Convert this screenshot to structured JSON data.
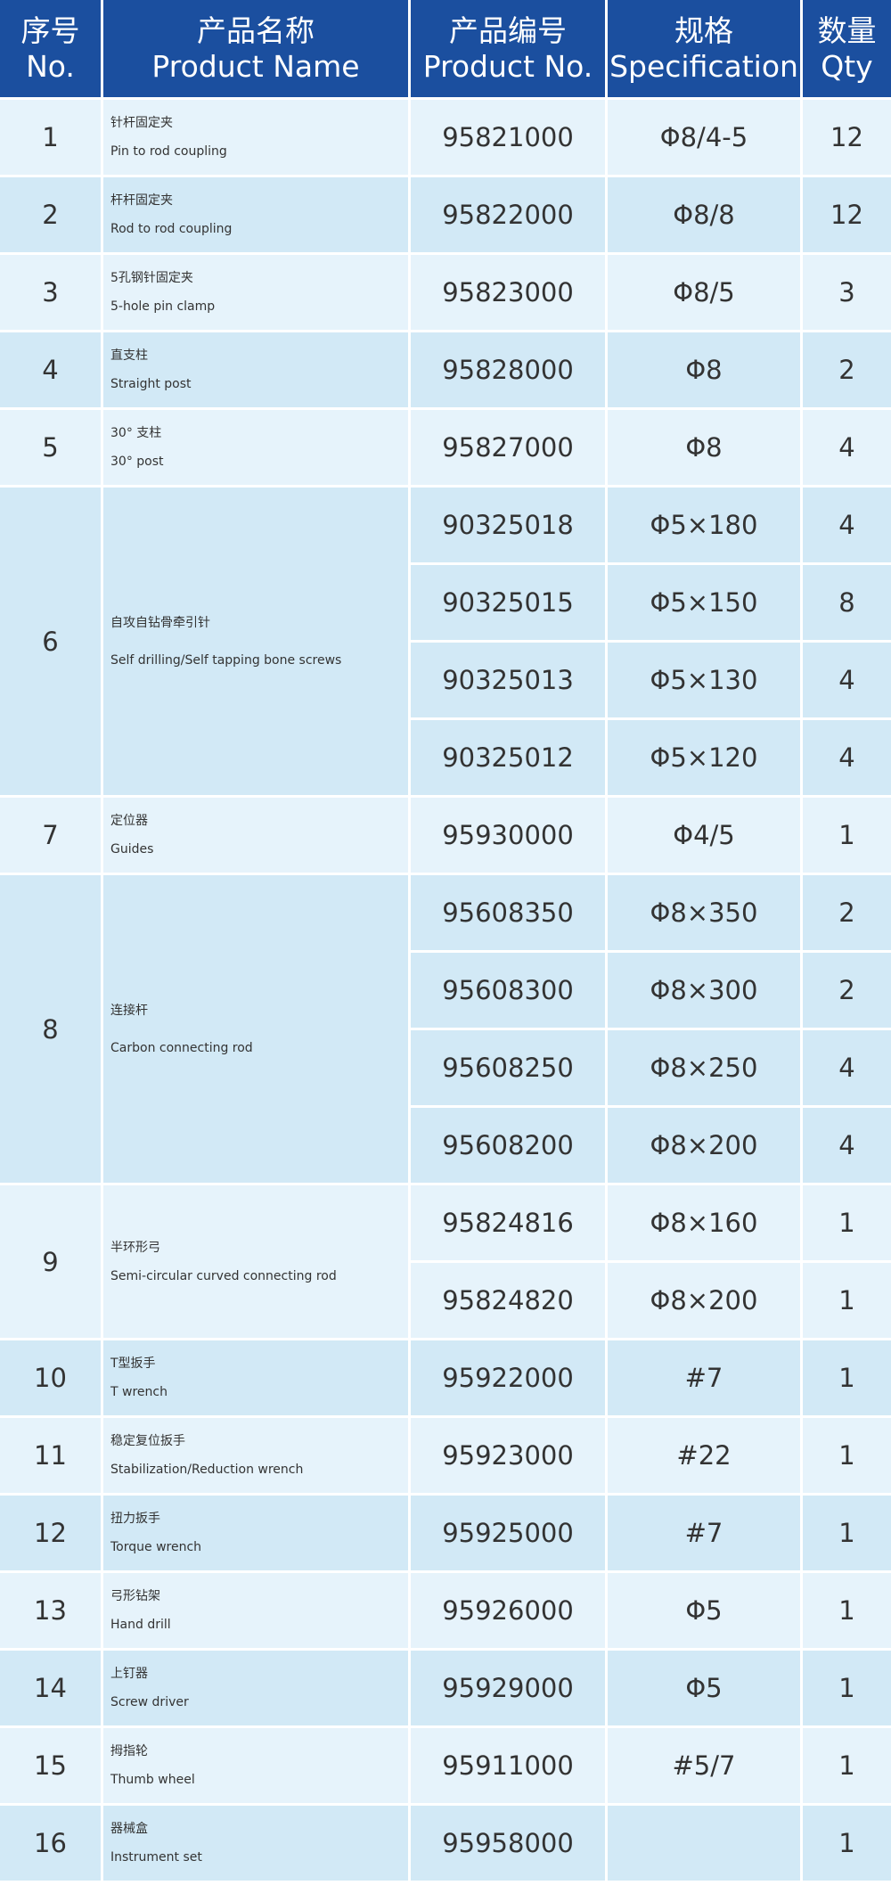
{
  "header": [
    {
      "cn": "序号",
      "en": "No."
    },
    {
      "cn": "产品名称",
      "en": "Product Name"
    },
    {
      "cn": "产品编号",
      "en": "Product No."
    },
    {
      "cn": "规格",
      "en": "Specification"
    },
    {
      "cn": "数量",
      "en": "Qty"
    }
  ],
  "items": [
    {
      "no": "1",
      "name_cn": "针杆固定夹",
      "name_en": "Pin to rod coupling",
      "parts": [
        {
          "code": "95821000",
          "spec": "Φ8/4-5",
          "qty": "12"
        }
      ]
    },
    {
      "no": "2",
      "name_cn": "杆杆固定夹",
      "name_en": "Rod to rod coupling",
      "parts": [
        {
          "code": "95822000",
          "spec": "Φ8/8",
          "qty": "12"
        }
      ]
    },
    {
      "no": "3",
      "name_cn": "5孔钢针固定夹",
      "name_en": "5-hole pin clamp",
      "parts": [
        {
          "code": "95823000",
          "spec": "Φ8/5",
          "qty": "3"
        }
      ]
    },
    {
      "no": "4",
      "name_cn": "直支柱",
      "name_en": "Straight post",
      "parts": [
        {
          "code": "95828000",
          "spec": "Φ8",
          "qty": "2"
        }
      ]
    },
    {
      "no": "5",
      "name_cn": "30° 支柱",
      "name_en": "30°  post",
      "parts": [
        {
          "code": "95827000",
          "spec": "Φ8",
          "qty": "4"
        }
      ]
    },
    {
      "no": "6",
      "name_cn": "自攻自钻骨牵引针",
      "name_en": "Self drilling/Self tapping bone screws",
      "parts": [
        {
          "code": "90325018",
          "spec": "Φ5×180",
          "qty": "4"
        },
        {
          "code": "90325015",
          "spec": "Φ5×150",
          "qty": "8"
        },
        {
          "code": "90325013",
          "spec": "Φ5×130",
          "qty": "4"
        },
        {
          "code": "90325012",
          "spec": "Φ5×120",
          "qty": "4"
        }
      ]
    },
    {
      "no": "7",
      "name_cn": "定位器",
      "name_en": "Guides",
      "parts": [
        {
          "code": "95930000",
          "spec": "Φ4/5",
          "qty": "1"
        }
      ]
    },
    {
      "no": "8",
      "name_cn": "连接杆",
      "name_en": "Carbon connecting rod",
      "parts": [
        {
          "code": "95608350",
          "spec": "Φ8×350",
          "qty": "2"
        },
        {
          "code": "95608300",
          "spec": "Φ8×300",
          "qty": "2"
        },
        {
          "code": "95608250",
          "spec": "Φ8×250",
          "qty": "4"
        },
        {
          "code": "95608200",
          "spec": "Φ8×200",
          "qty": "4"
        }
      ]
    },
    {
      "no": "9",
      "name_cn": "半环形弓",
      "name_en": "Semi-circular curved connecting rod",
      "parts": [
        {
          "code": "95824816",
          "spec": "Φ8×160",
          "qty": "1"
        },
        {
          "code": "95824820",
          "spec": "Φ8×200",
          "qty": "1"
        }
      ]
    },
    {
      "no": "10",
      "name_cn": "T型扳手",
      "name_en": "T wrench",
      "parts": [
        {
          "code": "95922000",
          "spec": "#7",
          "qty": "1"
        }
      ]
    },
    {
      "no": "11",
      "name_cn": "稳定复位扳手",
      "name_en": "Stabilization/Reduction wrench",
      "parts": [
        {
          "code": "95923000",
          "spec": "#22",
          "qty": "1"
        }
      ]
    },
    {
      "no": "12",
      "name_cn": "扭力扳手",
      "name_en": "Torque wrench",
      "parts": [
        {
          "code": "95925000",
          "spec": "#7",
          "qty": "1"
        }
      ]
    },
    {
      "no": "13",
      "name_cn": "弓形钻架",
      "name_en": "Hand drill",
      "parts": [
        {
          "code": "95926000",
          "spec": "Φ5",
          "qty": "1"
        }
      ]
    },
    {
      "no": "14",
      "name_cn": "上钉器",
      "name_en": "Screw driver",
      "parts": [
        {
          "code": "95929000",
          "spec": "Φ5",
          "qty": "1"
        }
      ]
    },
    {
      "no": "15",
      "name_cn": "拇指轮",
      "name_en": "Thumb wheel",
      "parts": [
        {
          "code": "95911000",
          "spec": "#5/7",
          "qty": "1"
        }
      ]
    },
    {
      "no": "16",
      "name_cn": "器械盒",
      "name_en": "Instrument set",
      "parts": [
        {
          "code": "95958000",
          "qty": "1"
        }
      ]
    }
  ]
}
